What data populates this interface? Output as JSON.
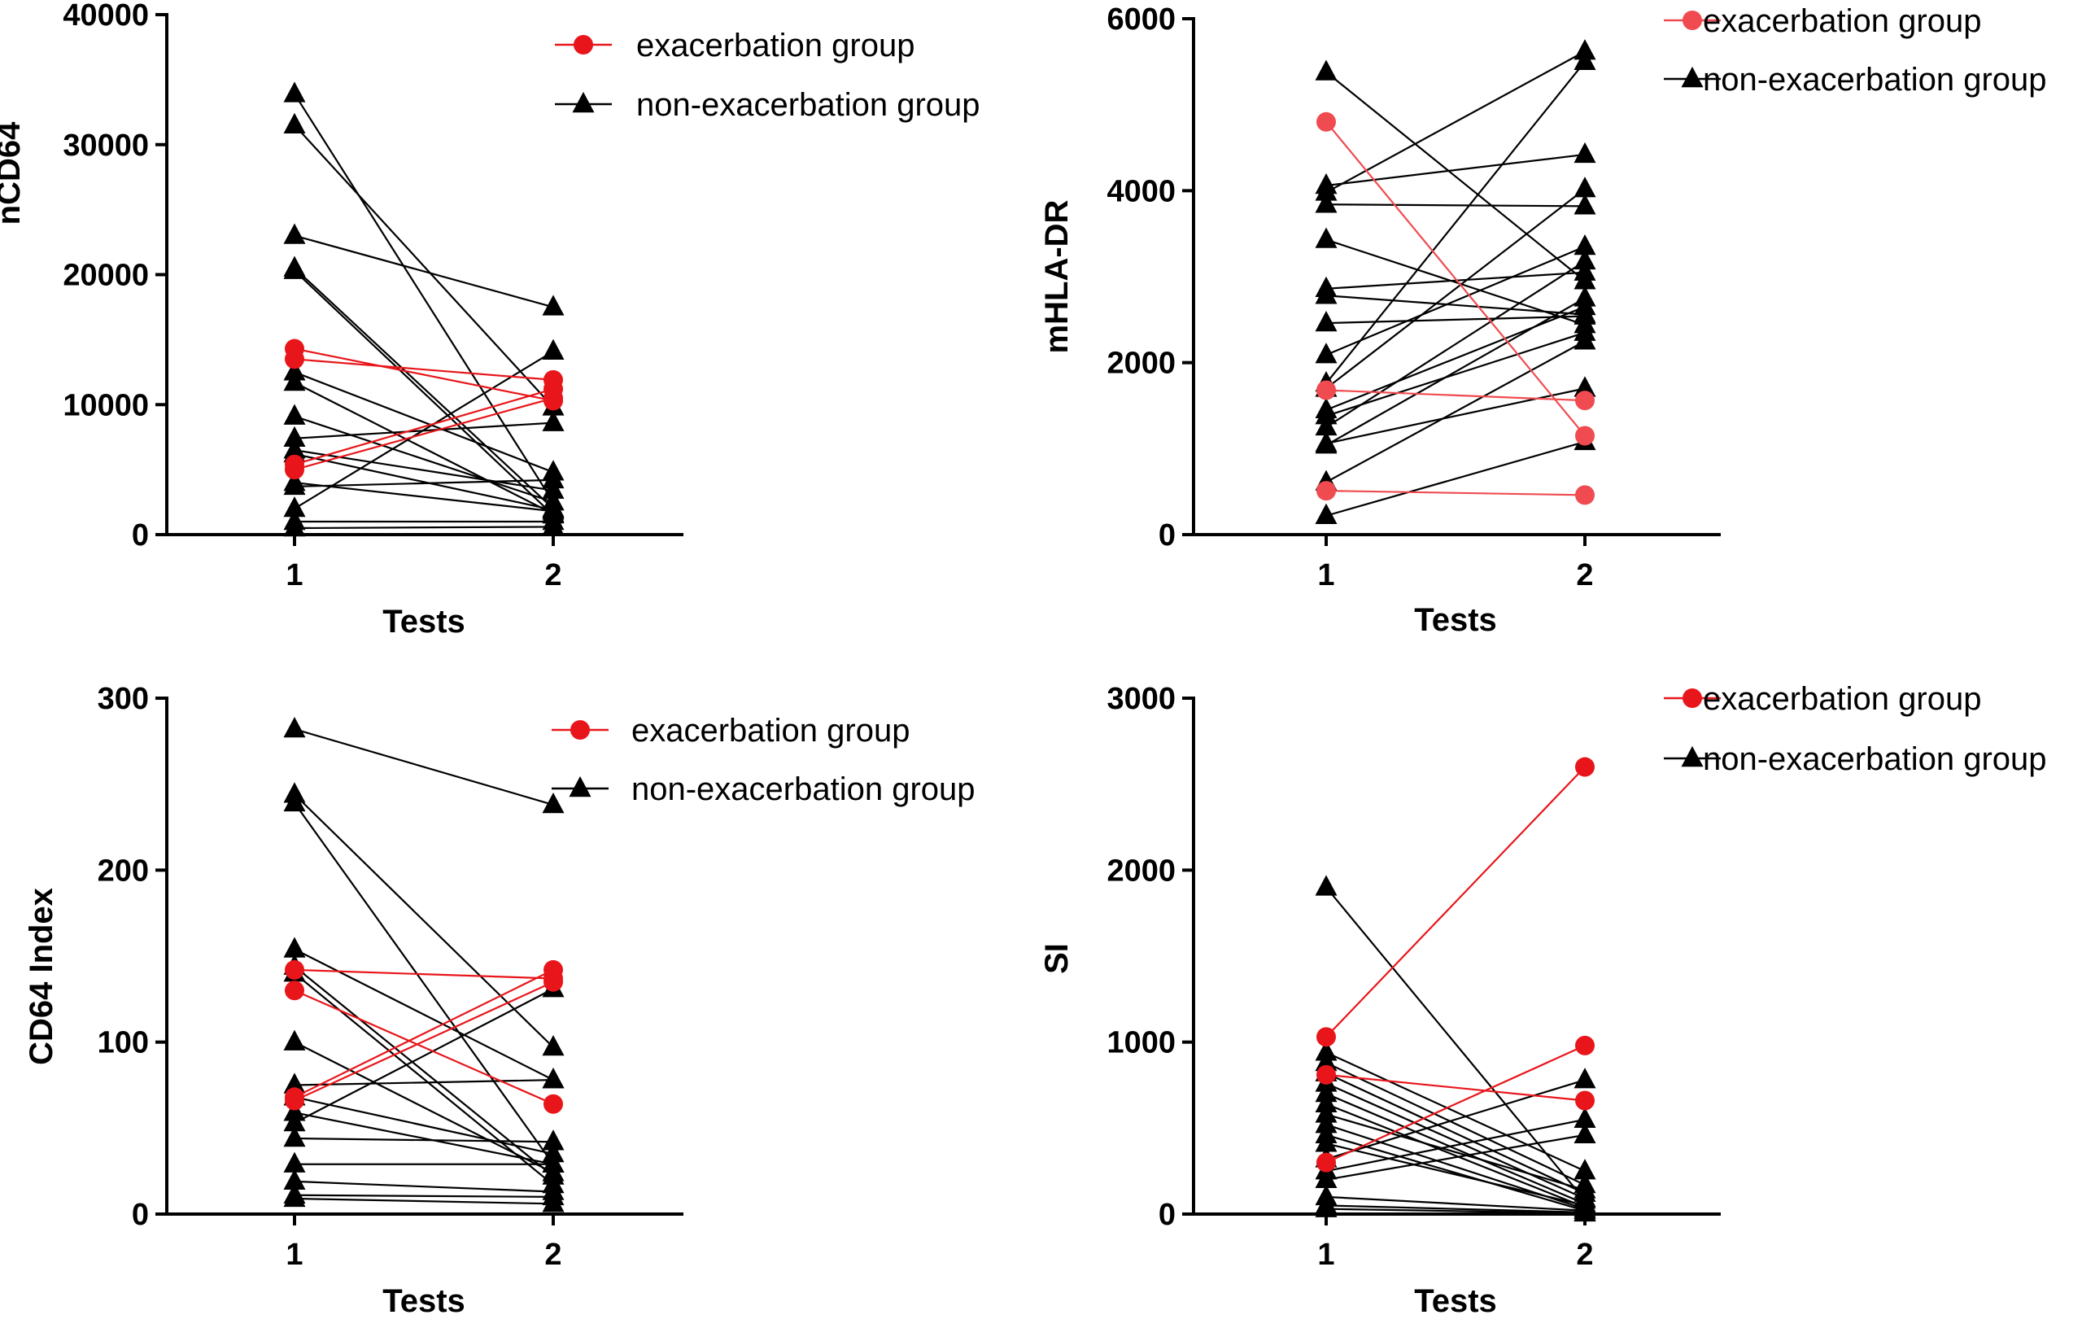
{
  "colors": {
    "exacerbation": "#e8161b",
    "exacerbation_light": "#ef4b50",
    "non_exacerbation": "#000000"
  },
  "chart_data": [
    {
      "type": "line",
      "name": "nCD64",
      "ylabel": "nCD64",
      "xlabel": "Tests",
      "categories": [
        "1",
        "2"
      ],
      "ylim": [
        0,
        40000
      ],
      "yticks": [
        "0",
        "10000",
        "20000",
        "30000",
        "40000"
      ],
      "legend": {
        "position": "top-right",
        "exacerbation": "exacerbation group",
        "non_exacerbation": "non-exacerbation group"
      },
      "exacerbation_color": "#e8161b",
      "series": [
        {
          "group": "exacerbation",
          "values": [
            14300,
            10300
          ]
        },
        {
          "group": "exacerbation",
          "values": [
            13500,
            11900
          ]
        },
        {
          "group": "exacerbation",
          "values": [
            5400,
            11200
          ]
        },
        {
          "group": "exacerbation",
          "values": [
            5000,
            10500
          ]
        },
        {
          "group": "non-exacerbation",
          "values": [
            33900,
            2500
          ]
        },
        {
          "group": "non-exacerbation",
          "values": [
            31500,
            9800
          ]
        },
        {
          "group": "non-exacerbation",
          "values": [
            23000,
            17500
          ]
        },
        {
          "group": "non-exacerbation",
          "values": [
            20500,
            2000
          ]
        },
        {
          "group": "non-exacerbation",
          "values": [
            20300,
            1500
          ]
        },
        {
          "group": "non-exacerbation",
          "values": [
            12500,
            4800
          ]
        },
        {
          "group": "non-exacerbation",
          "values": [
            11700,
            1600
          ]
        },
        {
          "group": "non-exacerbation",
          "values": [
            9100,
            2500
          ]
        },
        {
          "group": "non-exacerbation",
          "values": [
            7400,
            8600
          ]
        },
        {
          "group": "non-exacerbation",
          "values": [
            6500,
            3400
          ]
        },
        {
          "group": "non-exacerbation",
          "values": [
            6200,
            1900
          ]
        },
        {
          "group": "non-exacerbation",
          "values": [
            4000,
            1800
          ]
        },
        {
          "group": "non-exacerbation",
          "values": [
            3700,
            4200
          ]
        },
        {
          "group": "non-exacerbation",
          "values": [
            2000,
            14100
          ]
        },
        {
          "group": "non-exacerbation",
          "values": [
            1000,
            1000
          ]
        },
        {
          "group": "non-exacerbation",
          "values": [
            500,
            600
          ]
        }
      ]
    },
    {
      "type": "line",
      "name": "mHLA-DR",
      "ylabel": "mHLA-DR",
      "xlabel": "Tests",
      "categories": [
        "1",
        "2"
      ],
      "ylim": [
        0,
        6000
      ],
      "yticks": [
        "0",
        "2000",
        "4000",
        "6000"
      ],
      "legend": {
        "position": "top-right",
        "exacerbation": "exacerbation group",
        "non_exacerbation": "non-exacerbation group"
      },
      "exacerbation_color": "#ef4b50",
      "series": [
        {
          "group": "exacerbation",
          "values": [
            4800,
            1150
          ]
        },
        {
          "group": "exacerbation",
          "values": [
            1680,
            1560
          ]
        },
        {
          "group": "exacerbation",
          "values": [
            510,
            460
          ]
        },
        {
          "group": "non-exacerbation",
          "values": [
            5380,
            2950
          ]
        },
        {
          "group": "non-exacerbation",
          "values": [
            4060,
            4420
          ]
        },
        {
          "group": "non-exacerbation",
          "values": [
            3980,
            5620
          ]
        },
        {
          "group": "non-exacerbation",
          "values": [
            3840,
            3820
          ]
        },
        {
          "group": "non-exacerbation",
          "values": [
            3430,
            2440
          ]
        },
        {
          "group": "non-exacerbation",
          "values": [
            2860,
            3050
          ]
        },
        {
          "group": "non-exacerbation",
          "values": [
            2780,
            2560
          ]
        },
        {
          "group": "non-exacerbation",
          "values": [
            2460,
            2540
          ]
        },
        {
          "group": "non-exacerbation",
          "values": [
            2090,
            3350
          ]
        },
        {
          "group": "non-exacerbation",
          "values": [
            1760,
            5500
          ]
        },
        {
          "group": "non-exacerbation",
          "values": [
            1700,
            4020
          ]
        },
        {
          "group": "non-exacerbation",
          "values": [
            1450,
            2650
          ]
        },
        {
          "group": "non-exacerbation",
          "values": [
            1380,
            2350
          ]
        },
        {
          "group": "non-exacerbation",
          "values": [
            1250,
            3180
          ]
        },
        {
          "group": "non-exacerbation",
          "values": [
            1060,
            1700
          ]
        },
        {
          "group": "non-exacerbation",
          "values": [
            1040,
            2750
          ]
        },
        {
          "group": "non-exacerbation",
          "values": [
            610,
            2250
          ]
        },
        {
          "group": "non-exacerbation",
          "values": [
            220,
            1080
          ]
        }
      ]
    },
    {
      "type": "line",
      "name": "CD64 Index",
      "ylabel": "CD64 Index",
      "xlabel": "Tests",
      "categories": [
        "1",
        "2"
      ],
      "ylim": [
        0,
        300
      ],
      "yticks": [
        "0",
        "100",
        "200",
        "300"
      ],
      "legend": {
        "position": "top-right",
        "exacerbation": "exacerbation group",
        "non_exacerbation": "non-exacerbation group"
      },
      "exacerbation_color": "#e8161b",
      "series": [
        {
          "group": "exacerbation",
          "values": [
            142,
            137
          ]
        },
        {
          "group": "exacerbation",
          "values": [
            130,
            64
          ]
        },
        {
          "group": "exacerbation",
          "values": [
            68,
            142
          ]
        },
        {
          "group": "exacerbation",
          "values": [
            66,
            135
          ]
        },
        {
          "group": "non-exacerbation",
          "values": [
            282,
            238
          ]
        },
        {
          "group": "non-exacerbation",
          "values": [
            244,
            97
          ]
        },
        {
          "group": "non-exacerbation",
          "values": [
            239,
            29
          ]
        },
        {
          "group": "non-exacerbation",
          "values": [
            154,
            78
          ]
        },
        {
          "group": "non-exacerbation",
          "values": [
            144,
            22
          ]
        },
        {
          "group": "non-exacerbation",
          "values": [
            140,
            17
          ]
        },
        {
          "group": "non-exacerbation",
          "values": [
            100,
            24
          ]
        },
        {
          "group": "non-exacerbation",
          "values": [
            75,
            78
          ]
        },
        {
          "group": "non-exacerbation",
          "values": [
            68,
            35
          ]
        },
        {
          "group": "non-exacerbation",
          "values": [
            59,
            29
          ]
        },
        {
          "group": "non-exacerbation",
          "values": [
            53,
            131
          ]
        },
        {
          "group": "non-exacerbation",
          "values": [
            44,
            42
          ]
        },
        {
          "group": "non-exacerbation",
          "values": [
            29,
            29
          ]
        },
        {
          "group": "non-exacerbation",
          "values": [
            19,
            13
          ]
        },
        {
          "group": "non-exacerbation",
          "values": [
            11,
            10
          ]
        },
        {
          "group": "non-exacerbation",
          "values": [
            9,
            6
          ]
        }
      ]
    },
    {
      "type": "line",
      "name": "SI",
      "ylabel": "SI",
      "xlabel": "Tests",
      "categories": [
        "1",
        "2"
      ],
      "ylim": [
        0,
        3000
      ],
      "yticks": [
        "0",
        "1000",
        "2000",
        "3000"
      ],
      "legend": {
        "position": "top-right",
        "exacerbation": "exacerbation group",
        "non_exacerbation": "non-exacerbation group"
      },
      "exacerbation_color": "#e8161b",
      "series": [
        {
          "group": "exacerbation",
          "values": [
            1030,
            2600
          ]
        },
        {
          "group": "exacerbation",
          "values": [
            810,
            660
          ]
        },
        {
          "group": "exacerbation",
          "values": [
            300,
            980
          ]
        },
        {
          "group": "non-exacerbation",
          "values": [
            1900,
            80
          ]
        },
        {
          "group": "non-exacerbation",
          "values": [
            940,
            250
          ]
        },
        {
          "group": "non-exacerbation",
          "values": [
            880,
            170
          ]
        },
        {
          "group": "non-exacerbation",
          "values": [
            820,
            120
          ]
        },
        {
          "group": "non-exacerbation",
          "values": [
            760,
            90
          ]
        },
        {
          "group": "non-exacerbation",
          "values": [
            700,
            60
          ]
        },
        {
          "group": "non-exacerbation",
          "values": [
            640,
            40
          ]
        },
        {
          "group": "non-exacerbation",
          "values": [
            580,
            140
          ]
        },
        {
          "group": "non-exacerbation",
          "values": [
            520,
            30
          ]
        },
        {
          "group": "non-exacerbation",
          "values": [
            460,
            20
          ]
        },
        {
          "group": "non-exacerbation",
          "values": [
            410,
            50
          ]
        },
        {
          "group": "non-exacerbation",
          "values": [
            320,
            780
          ]
        },
        {
          "group": "non-exacerbation",
          "values": [
            250,
            550
          ]
        },
        {
          "group": "non-exacerbation",
          "values": [
            200,
            460
          ]
        },
        {
          "group": "non-exacerbation",
          "values": [
            100,
            20
          ]
        },
        {
          "group": "non-exacerbation",
          "values": [
            50,
            10
          ]
        },
        {
          "group": "non-exacerbation",
          "values": [
            30,
            5
          ]
        }
      ]
    }
  ]
}
